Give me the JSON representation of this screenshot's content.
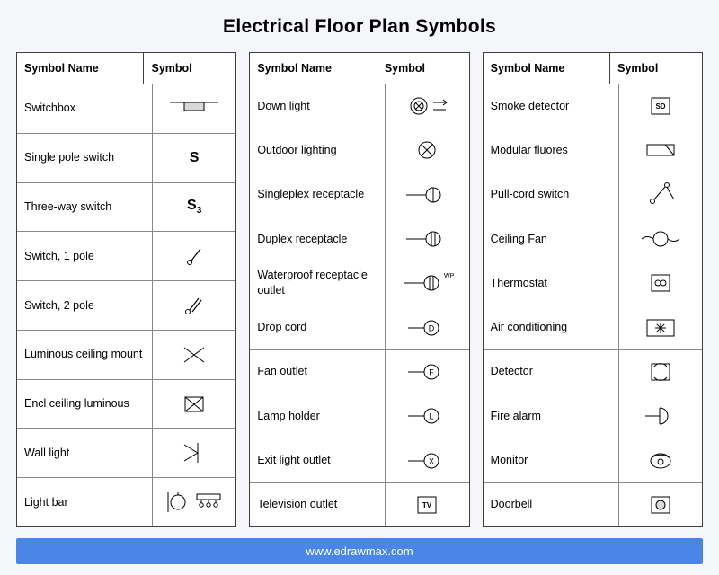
{
  "title": "Electrical Floor Plan Symbols",
  "footer": "www.edrawmax.com",
  "header_name": "Symbol Name",
  "header_symbol": "Symbol",
  "colors": {
    "page_bg": "#f5f6f9",
    "table_bg": "#ffffff",
    "border": "#404040",
    "row_border": "#888888",
    "footer_bg": "#4a85e8",
    "footer_text": "#ffffff",
    "stroke": "#000000",
    "fill_grey": "#d9d9d9"
  },
  "tables": [
    {
      "rows": [
        {
          "name": "Switchbox",
          "icon": "switchbox"
        },
        {
          "name": "Single pole switch",
          "icon": "s-letter",
          "letter": "S"
        },
        {
          "name": "Three-way switch",
          "icon": "s-sub",
          "letter": "S",
          "sub": "3"
        },
        {
          "name": "Switch, 1 pole",
          "icon": "switch1"
        },
        {
          "name": "Switch, 2 pole",
          "icon": "switch2"
        },
        {
          "name": "Luminous ceiling mount",
          "icon": "x-open"
        },
        {
          "name": "Encl ceiling luminous",
          "icon": "x-box"
        },
        {
          "name": "Wall light",
          "icon": "wall-light"
        },
        {
          "name": "Light bar",
          "icon": "light-bar"
        }
      ]
    },
    {
      "rows": [
        {
          "name": "Down light",
          "icon": "down-light"
        },
        {
          "name": "Outdoor lighting",
          "icon": "circle-x"
        },
        {
          "name": "Singleplex receptacle",
          "icon": "recept-1"
        },
        {
          "name": "Duplex receptacle",
          "icon": "recept-2"
        },
        {
          "name": "Waterproof receptacle outlet",
          "icon": "recept-wp"
        },
        {
          "name": "Drop cord",
          "icon": "circle-letter",
          "letter": "D"
        },
        {
          "name": "Fan outlet",
          "icon": "circle-letter",
          "letter": "F"
        },
        {
          "name": "Lamp holder",
          "icon": "circle-letter",
          "letter": "L"
        },
        {
          "name": "Exit light outlet",
          "icon": "circle-letter",
          "letter": "X"
        },
        {
          "name": "Television outlet",
          "icon": "box-text",
          "letter": "TV"
        }
      ]
    },
    {
      "rows": [
        {
          "name": "Smoke detector",
          "icon": "box-text",
          "letter": "SD"
        },
        {
          "name": "Modular fluores",
          "icon": "mod-fluor"
        },
        {
          "name": "Pull-cord switch",
          "icon": "pull-cord"
        },
        {
          "name": "Ceiling Fan",
          "icon": "ceiling-fan"
        },
        {
          "name": "Thermostat",
          "icon": "thermostat"
        },
        {
          "name": "Air conditioning",
          "icon": "aircon"
        },
        {
          "name": "Detector",
          "icon": "detector"
        },
        {
          "name": "Fire alarm",
          "icon": "fire-alarm"
        },
        {
          "name": "Monitor",
          "icon": "monitor"
        },
        {
          "name": "Doorbell",
          "icon": "doorbell"
        }
      ]
    }
  ]
}
